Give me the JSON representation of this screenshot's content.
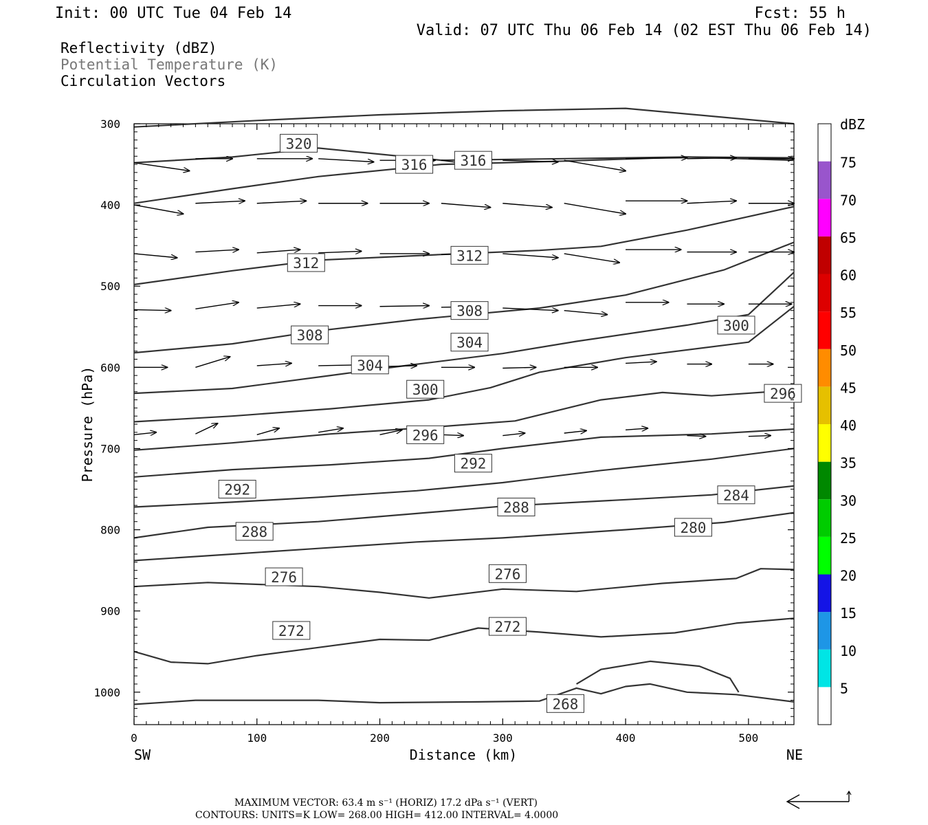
{
  "header": {
    "init": "Init: 00 UTC Tue 04 Feb 14",
    "fcst": "Fcst:   55 h",
    "valid": "Valid: 07 UTC Thu 06 Feb 14 (02 EST Thu 06 Feb 14)",
    "fields": [
      {
        "label": "Reflectivity (dBZ)",
        "color": "#000000"
      },
      {
        "label": "Potential Temperature (K)",
        "color": "#777777"
      },
      {
        "label": "Circulation Vectors",
        "color": "#000000"
      }
    ]
  },
  "chart_data": {
    "type": "cross-section",
    "xlabel": "Distance (km)",
    "ylabel": "Pressure (hPa)",
    "xlim": [
      0,
      537
    ],
    "ylim": [
      300,
      1040
    ],
    "x_ticks": [
      0,
      100,
      200,
      300,
      400,
      500
    ],
    "y_ticks": [
      300,
      400,
      500,
      600,
      700,
      800,
      900,
      1000
    ],
    "endpoint_labels": {
      "left": "SW",
      "right": "NE"
    },
    "theta_contours": [
      {
        "level": 320,
        "points": [
          [
            0,
            304
          ],
          [
            100,
            296
          ],
          [
            200,
            289
          ],
          [
            300,
            284
          ],
          [
            400,
            281
          ],
          [
            537,
            300
          ]
        ]
      },
      {
        "level": 316,
        "points": [
          [
            0,
            348
          ],
          [
            80,
            341
          ],
          [
            150,
            330
          ],
          [
            250,
            345
          ],
          [
            350,
            343
          ],
          [
            450,
            341
          ],
          [
            537,
            342
          ]
        ]
      },
      {
        "level": 312,
        "points": [
          [
            0,
            398
          ],
          [
            80,
            380
          ],
          [
            150,
            365
          ],
          [
            250,
            350
          ],
          [
            350,
            346
          ],
          [
            450,
            341
          ],
          [
            537,
            345
          ]
        ]
      },
      {
        "level": 312,
        "points": [
          [
            0,
            498
          ],
          [
            80,
            481
          ],
          [
            150,
            468
          ],
          [
            250,
            461
          ],
          [
            330,
            456
          ],
          [
            380,
            451
          ],
          [
            450,
            431
          ],
          [
            537,
            402
          ]
        ]
      },
      {
        "level": 308,
        "points": [
          [
            0,
            582
          ],
          [
            80,
            571
          ],
          [
            150,
            555
          ],
          [
            230,
            541
          ],
          [
            330,
            527
          ],
          [
            400,
            511
          ],
          [
            480,
            480
          ],
          [
            537,
            446
          ]
        ]
      },
      {
        "level": 304,
        "points": [
          [
            0,
            632
          ],
          [
            80,
            626
          ],
          [
            160,
            610
          ],
          [
            220,
            598
          ],
          [
            300,
            583
          ],
          [
            360,
            568
          ],
          [
            450,
            548
          ],
          [
            500,
            535
          ],
          [
            537,
            483
          ]
        ]
      },
      {
        "level": 300,
        "points": [
          [
            0,
            667
          ],
          [
            80,
            660
          ],
          [
            160,
            651
          ],
          [
            240,
            640
          ],
          [
            290,
            625
          ],
          [
            330,
            606
          ],
          [
            400,
            588
          ],
          [
            500,
            569
          ],
          [
            537,
            525
          ]
        ]
      },
      {
        "level": 296,
        "points": [
          [
            0,
            702
          ],
          [
            80,
            693
          ],
          [
            160,
            682
          ],
          [
            240,
            674
          ],
          [
            310,
            666
          ],
          [
            380,
            640
          ],
          [
            430,
            631
          ],
          [
            470,
            635
          ],
          [
            537,
            628
          ]
        ]
      },
      {
        "level": 292,
        "points": [
          [
            0,
            735
          ],
          [
            80,
            726
          ],
          [
            160,
            720
          ],
          [
            240,
            712
          ],
          [
            300,
            700
          ],
          [
            380,
            686
          ],
          [
            470,
            682
          ],
          [
            537,
            676
          ]
        ]
      },
      {
        "level": 288,
        "points": [
          [
            0,
            772
          ],
          [
            80,
            766
          ],
          [
            150,
            760
          ],
          [
            230,
            752
          ],
          [
            300,
            742
          ],
          [
            380,
            727
          ],
          [
            470,
            713
          ],
          [
            537,
            700
          ]
        ]
      },
      {
        "level": 284,
        "points": [
          [
            0,
            810
          ],
          [
            60,
            797
          ],
          [
            150,
            790
          ],
          [
            230,
            780
          ],
          [
            300,
            771
          ],
          [
            400,
            763
          ],
          [
            470,
            757
          ],
          [
            537,
            746
          ]
        ]
      },
      {
        "level": 280,
        "points": [
          [
            0,
            838
          ],
          [
            80,
            830
          ],
          [
            150,
            823
          ],
          [
            230,
            815
          ],
          [
            300,
            810
          ],
          [
            400,
            800
          ],
          [
            480,
            791
          ],
          [
            537,
            779
          ]
        ]
      },
      {
        "level": 276,
        "points": [
          [
            0,
            870
          ],
          [
            60,
            865
          ],
          [
            150,
            870
          ],
          [
            200,
            877
          ],
          [
            240,
            884
          ],
          [
            300,
            873
          ],
          [
            360,
            876
          ],
          [
            430,
            866
          ],
          [
            490,
            860
          ],
          [
            510,
            848
          ],
          [
            537,
            849
          ]
        ]
      },
      {
        "level": 272,
        "points": [
          [
            0,
            950
          ],
          [
            30,
            963
          ],
          [
            60,
            965
          ],
          [
            100,
            955
          ],
          [
            150,
            945
          ],
          [
            200,
            935
          ],
          [
            240,
            936
          ],
          [
            280,
            921
          ],
          [
            330,
            926
          ],
          [
            380,
            932
          ],
          [
            440,
            927
          ],
          [
            490,
            915
          ],
          [
            537,
            909
          ]
        ]
      },
      {
        "level": 268,
        "points": [
          [
            0,
            1015
          ],
          [
            50,
            1010
          ],
          [
            150,
            1010
          ],
          [
            200,
            1013
          ],
          [
            280,
            1012
          ],
          [
            330,
            1011
          ],
          [
            360,
            995
          ],
          [
            380,
            1002
          ],
          [
            400,
            993
          ],
          [
            420,
            990
          ],
          [
            450,
            1000
          ],
          [
            490,
            1003
          ],
          [
            537,
            1012
          ]
        ]
      },
      {
        "level": 268,
        "points": [
          [
            360,
            990
          ],
          [
            380,
            972
          ],
          [
            420,
            962
          ],
          [
            460,
            968
          ],
          [
            485,
            983
          ],
          [
            492,
            1000
          ]
        ]
      }
    ],
    "contour_labels": [
      {
        "text": "320",
        "x": 134,
        "p": 324
      },
      {
        "text": "316",
        "x": 228,
        "p": 350
      },
      {
        "text": "316",
        "x": 276,
        "p": 345
      },
      {
        "text": "312",
        "x": 140,
        "p": 471
      },
      {
        "text": "312",
        "x": 273,
        "p": 462
      },
      {
        "text": "308",
        "x": 143,
        "p": 560
      },
      {
        "text": "308",
        "x": 273,
        "p": 530
      },
      {
        "text": "304",
        "x": 273,
        "p": 569
      },
      {
        "text": "304",
        "x": 192,
        "p": 597
      },
      {
        "text": "300",
        "x": 237,
        "p": 627
      },
      {
        "text": "300",
        "x": 490,
        "p": 548
      },
      {
        "text": "296",
        "x": 237,
        "p": 683
      },
      {
        "text": "296",
        "x": 528,
        "p": 632
      },
      {
        "text": "292",
        "x": 276,
        "p": 718
      },
      {
        "text": "292",
        "x": 84,
        "p": 750
      },
      {
        "text": "288",
        "x": 311,
        "p": 772
      },
      {
        "text": "288",
        "x": 98,
        "p": 802
      },
      {
        "text": "284",
        "x": 490,
        "p": 757
      },
      {
        "text": "280",
        "x": 455,
        "p": 797
      },
      {
        "text": "276",
        "x": 122,
        "p": 858
      },
      {
        "text": "276",
        "x": 304,
        "p": 854
      },
      {
        "text": "272",
        "x": 128,
        "p": 924
      },
      {
        "text": "272",
        "x": 304,
        "p": 919
      },
      {
        "text": "268",
        "x": 351,
        "p": 1014
      }
    ],
    "vector_rows": [
      {
        "p": 345,
        "vectors": [
          [
            0,
            348,
            45,
            358
          ],
          [
            50,
            343,
            80,
            343
          ],
          [
            100,
            343,
            145,
            343
          ],
          [
            150,
            343,
            195,
            347
          ],
          [
            200,
            345,
            245,
            345
          ],
          [
            250,
            345,
            290,
            353
          ],
          [
            300,
            345,
            345,
            347
          ],
          [
            350,
            345,
            400,
            358
          ],
          [
            400,
            343,
            450,
            342
          ],
          [
            450,
            343,
            490,
            342
          ],
          [
            500,
            343,
            537,
            343
          ]
        ]
      },
      {
        "p": 400,
        "vectors": [
          [
            0,
            400,
            40,
            411
          ],
          [
            50,
            398,
            90,
            395
          ],
          [
            100,
            398,
            140,
            395
          ],
          [
            150,
            398,
            190,
            398
          ],
          [
            200,
            398,
            240,
            398
          ],
          [
            250,
            398,
            290,
            403
          ],
          [
            300,
            398,
            340,
            403
          ],
          [
            350,
            398,
            400,
            411
          ],
          [
            400,
            395,
            450,
            395
          ],
          [
            450,
            398,
            490,
            395
          ],
          [
            500,
            398,
            537,
            398
          ]
        ]
      },
      {
        "p": 465,
        "vectors": [
          [
            0,
            460,
            35,
            465
          ],
          [
            50,
            458,
            85,
            455
          ],
          [
            100,
            459,
            135,
            455
          ],
          [
            150,
            459,
            185,
            457
          ],
          [
            200,
            460,
            240,
            460
          ],
          [
            250,
            461,
            285,
            460
          ],
          [
            300,
            460,
            345,
            465
          ],
          [
            350,
            460,
            395,
            471
          ],
          [
            400,
            455,
            445,
            455
          ],
          [
            450,
            458,
            490,
            458
          ],
          [
            500,
            458,
            537,
            458
          ]
        ]
      },
      {
        "p": 530,
        "vectors": [
          [
            0,
            529,
            30,
            530
          ],
          [
            50,
            528,
            85,
            520
          ],
          [
            100,
            527,
            135,
            522
          ],
          [
            150,
            524,
            185,
            524
          ],
          [
            200,
            525,
            240,
            524
          ],
          [
            250,
            526,
            285,
            525
          ],
          [
            300,
            527,
            345,
            530
          ],
          [
            350,
            530,
            385,
            535
          ],
          [
            400,
            520,
            435,
            520
          ],
          [
            450,
            522,
            480,
            522
          ],
          [
            500,
            522,
            535,
            522
          ]
        ]
      },
      {
        "p": 600,
        "vectors": [
          [
            0,
            600,
            27,
            600
          ],
          [
            50,
            600,
            78,
            587
          ],
          [
            100,
            598,
            128,
            595
          ],
          [
            150,
            598,
            182,
            597
          ],
          [
            200,
            599,
            230,
            598
          ],
          [
            250,
            600,
            277,
            600
          ],
          [
            300,
            601,
            327,
            600
          ],
          [
            350,
            600,
            377,
            600
          ],
          [
            400,
            595,
            425,
            593
          ],
          [
            450,
            596,
            470,
            596
          ],
          [
            500,
            596,
            520,
            596
          ]
        ]
      },
      {
        "p": 683,
        "vectors": [
          [
            0,
            683,
            18,
            680
          ],
          [
            50,
            682,
            68,
            669
          ],
          [
            100,
            683,
            118,
            675
          ],
          [
            150,
            680,
            170,
            675
          ],
          [
            200,
            683,
            218,
            677
          ],
          [
            250,
            683,
            268,
            684
          ],
          [
            300,
            684,
            318,
            681
          ],
          [
            350,
            681,
            368,
            678
          ],
          [
            400,
            677,
            418,
            675
          ],
          [
            450,
            684,
            465,
            685
          ],
          [
            500,
            685,
            518,
            684
          ]
        ]
      }
    ],
    "scale_arrow": "horizontal reference vector with small vertical tick",
    "colorbar": {
      "label": "dBZ",
      "levels": [
        5,
        10,
        15,
        20,
        25,
        30,
        35,
        40,
        45,
        50,
        55,
        60,
        65,
        70,
        75
      ],
      "colors": [
        "#ffffff",
        "#00e5e5",
        "#1e96e6",
        "#1414e6",
        "#00ff00",
        "#00cc00",
        "#008800",
        "#ffff00",
        "#e6c000",
        "#ff8c00",
        "#ff0000",
        "#dd0000",
        "#c00000",
        "#ff00ff",
        "#9955cc",
        "#ffffff"
      ]
    }
  },
  "footer": {
    "vector_line": "MAXIMUM VECTOR:  63.4 m s⁻¹ (HORIZ)        17.2 dPa s⁻¹ (VERT)",
    "contours_line": "CONTOURS:  UNITS=K  LOW=  268.00       HIGH=  412.00       INTERVAL=    4.0000"
  }
}
